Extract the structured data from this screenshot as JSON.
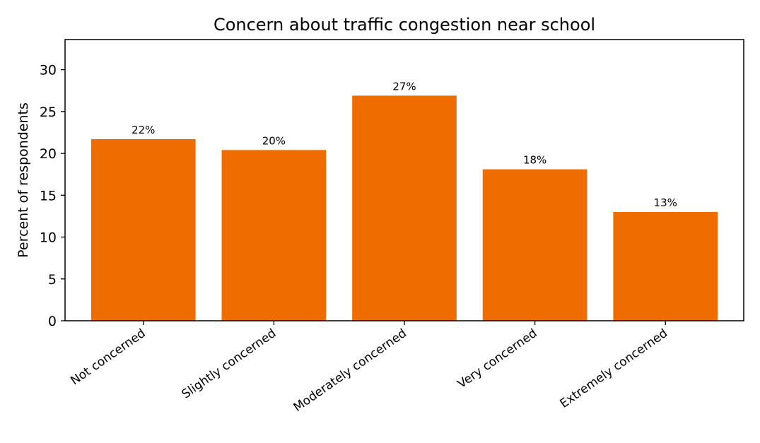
{
  "chart_data": {
    "type": "bar",
    "title": "Concern about traffic congestion near school",
    "xlabel": "",
    "ylabel": "Percent of respondents",
    "categories": [
      "Not concerned",
      "Slightly concerned",
      "Moderately concerned",
      "Very concerned",
      "Extremely concerned"
    ],
    "values": [
      21.7,
      20.4,
      26.9,
      18.1,
      13.0
    ],
    "data_labels": [
      "22%",
      "20%",
      "27%",
      "18%",
      "13%"
    ],
    "ylim": [
      0,
      33.6
    ],
    "yticks": [
      0,
      5,
      10,
      15,
      20,
      25,
      30
    ],
    "bar_color": "#ef6c00",
    "grid": false,
    "legend": "none"
  }
}
